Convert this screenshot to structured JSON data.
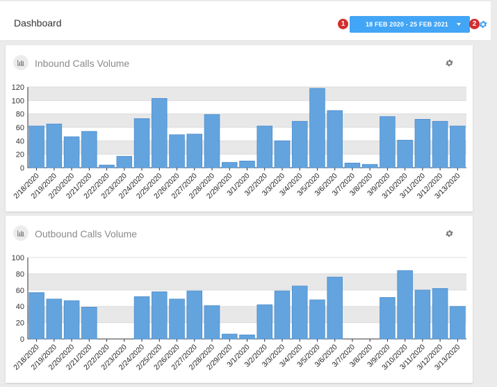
{
  "header": {
    "title": "Dashboard",
    "date_range": "18 FEB 2020 - 25 FEB 2021",
    "badge1": "1",
    "badge2": "2",
    "accent": "#42a5f5",
    "badge_color": "#d32f2f"
  },
  "cards": [
    {
      "title": "Inbound Calls Volume"
    },
    {
      "title": "Outbound Calls Volume"
    }
  ],
  "chart_data": [
    {
      "type": "bar",
      "title": "Inbound Calls Volume",
      "categories": [
        "2/18/2020",
        "2/19/2020",
        "2/20/2020",
        "2/21/2020",
        "2/22/2020",
        "2/23/2020",
        "2/24/2020",
        "2/25/2020",
        "2/26/2020",
        "2/27/2020",
        "2/28/2020",
        "2/29/2020",
        "3/1/2020",
        "3/2/2020",
        "3/3/2020",
        "3/4/2020",
        "3/5/2020",
        "3/6/2020",
        "3/7/2020",
        "3/8/2020",
        "3/9/2020",
        "3/10/2020",
        "3/11/2020",
        "3/12/2020",
        "3/13/2020"
      ],
      "values": [
        62,
        65,
        46,
        54,
        4,
        17,
        73,
        103,
        49,
        50,
        79,
        8,
        10,
        62,
        40,
        69,
        118,
        85,
        7,
        5,
        76,
        41,
        72,
        69,
        62
      ],
      "ylim": [
        0,
        120
      ],
      "yticks": [
        0,
        20,
        40,
        60,
        80,
        100,
        120
      ],
      "bar_color": "#64a4de",
      "grid": true
    },
    {
      "type": "bar",
      "title": "Outbound Calls Volume",
      "categories": [
        "2/18/2020",
        "2/19/2020",
        "2/20/2020",
        "2/21/2020",
        "2/22/2020",
        "2/23/2020",
        "2/24/2020",
        "2/25/2020",
        "2/26/2020",
        "2/27/2020",
        "2/28/2020",
        "2/29/2020",
        "3/1/2020",
        "3/2/2020",
        "3/3/2020",
        "3/4/2020",
        "3/5/2020",
        "3/6/2020",
        "3/7/2020",
        "3/8/2020",
        "3/9/2020",
        "3/10/2020",
        "3/11/2020",
        "3/12/2020",
        "3/13/2020"
      ],
      "values": [
        57,
        49,
        47,
        39,
        0,
        0,
        52,
        58,
        49,
        59,
        41,
        6,
        5,
        42,
        59,
        65,
        48,
        76,
        0,
        0,
        51,
        84,
        60,
        62,
        40
      ],
      "ylim": [
        0,
        100
      ],
      "yticks": [
        0,
        20,
        40,
        60,
        80,
        100
      ],
      "bar_color": "#64a4de",
      "grid": true
    }
  ]
}
